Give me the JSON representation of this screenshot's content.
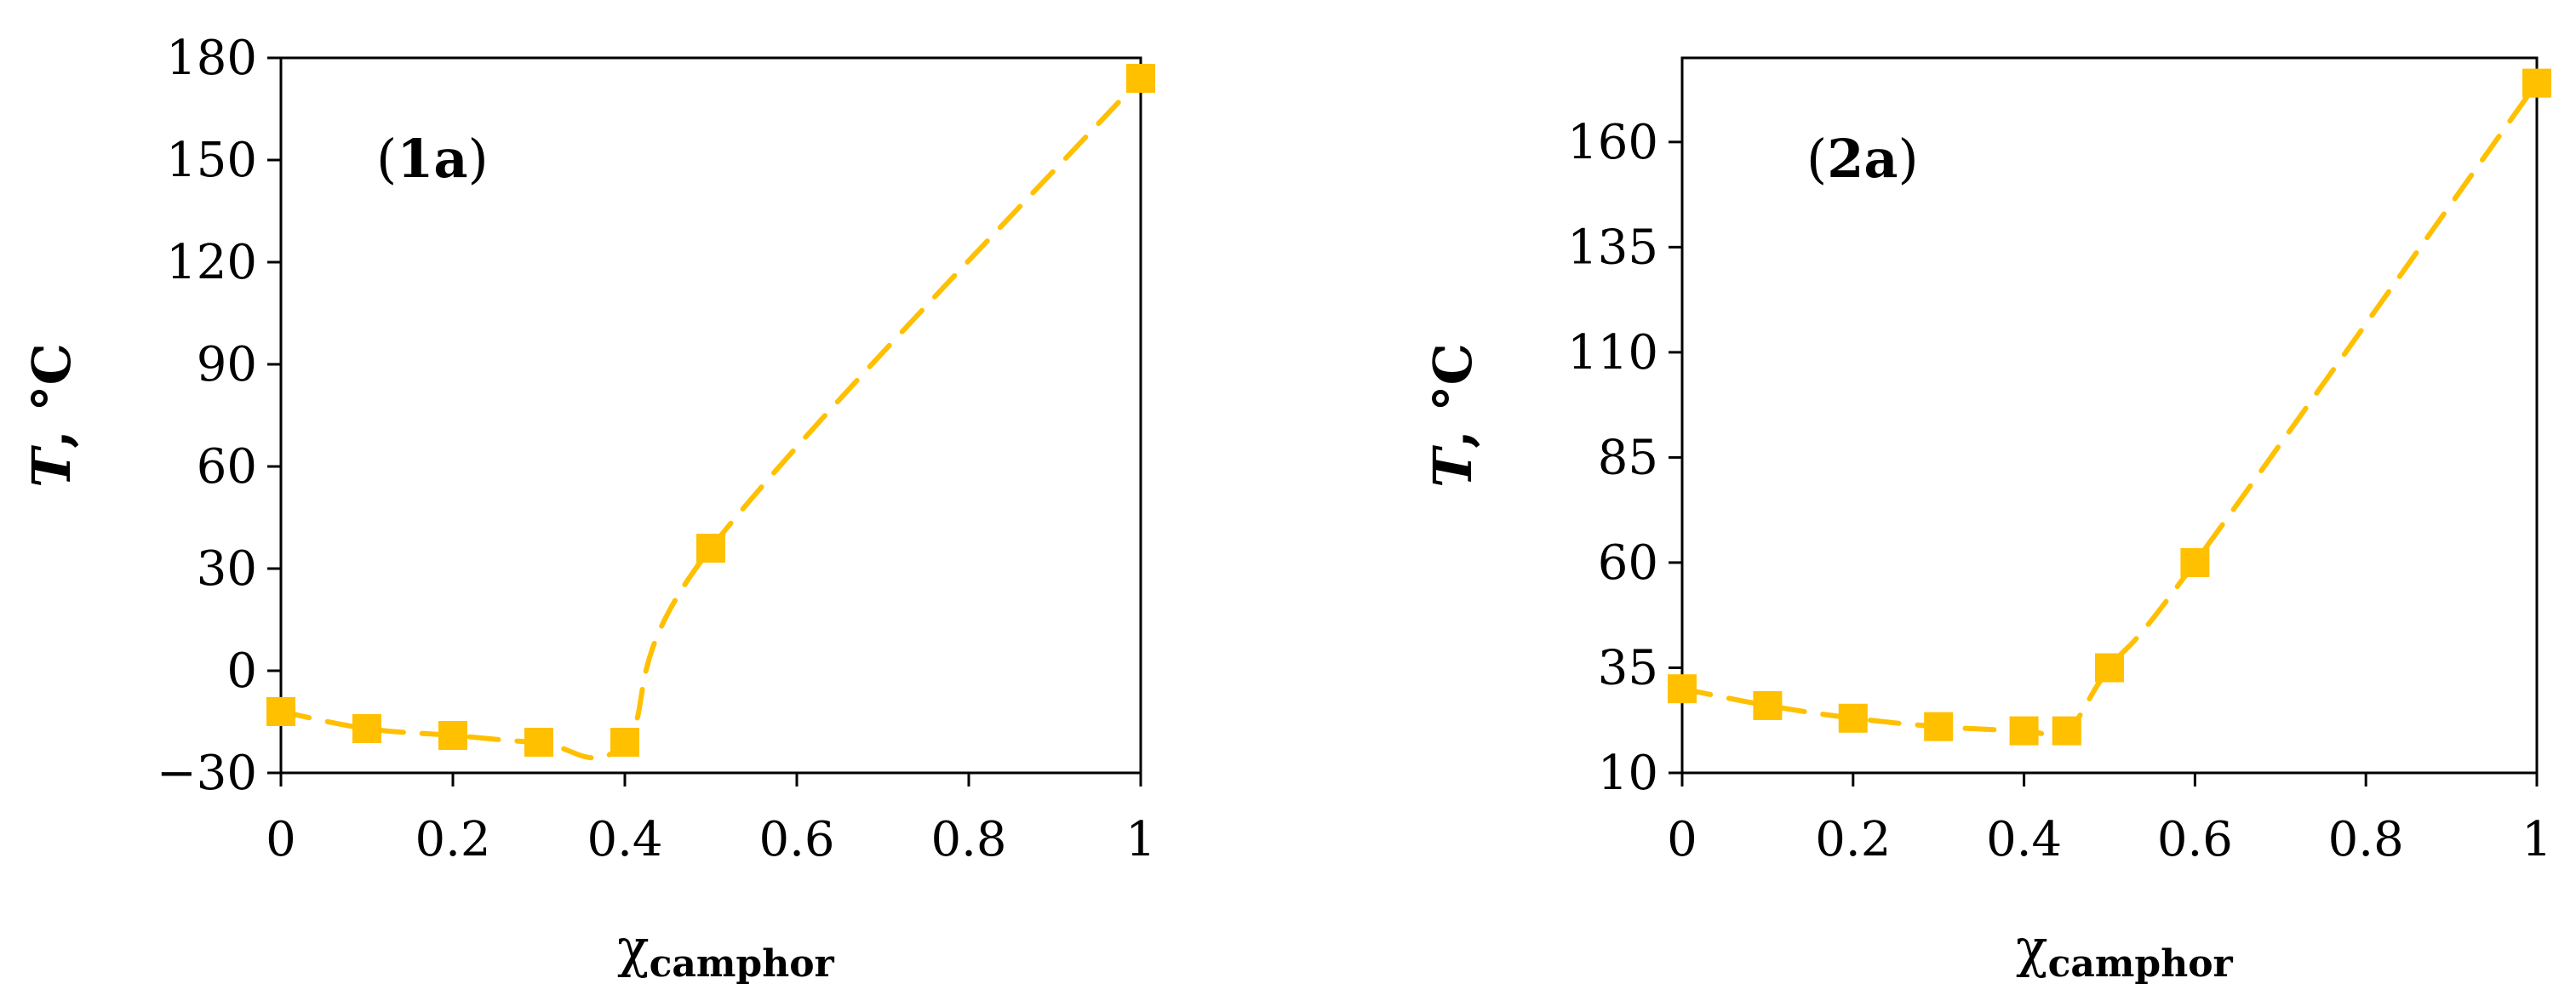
{
  "chart_data": [
    {
      "type": "line",
      "panel_label": {
        "open": "(",
        "bold": "1a",
        "close": ")"
      },
      "ylabel": {
        "italic": "T",
        "rest": ", °C"
      },
      "xlabel": {
        "main": "χ",
        "sub": "camphor"
      },
      "ylim": [
        -30,
        180
      ],
      "yticks": [
        "−30",
        "0",
        "30",
        "60",
        "90",
        "120",
        "150",
        "180"
      ],
      "ytick_values": [
        -30,
        0,
        30,
        60,
        90,
        120,
        150,
        180
      ],
      "xlim": [
        0,
        1
      ],
      "xticks": [
        "0",
        "0.2",
        "0.4",
        "0.6",
        "0.8",
        "1"
      ],
      "xtick_values": [
        0,
        0.2,
        0.4,
        0.6,
        0.8,
        1
      ],
      "grid": false,
      "marker_color": "#FFC000",
      "line_style": "dashed",
      "series": [
        {
          "x": [
            0,
            0.1,
            0.2,
            0.3,
            0.4,
            0.5,
            1
          ],
          "values": [
            -12,
            -17,
            -19,
            -21,
            -21,
            36,
            174
          ]
        }
      ]
    },
    {
      "type": "line",
      "panel_label": {
        "open": "(",
        "bold": "2a",
        "close": ")"
      },
      "ylabel": {
        "italic": "T",
        "rest": ", °C"
      },
      "xlabel": {
        "main": "χ",
        "sub": "camphor"
      },
      "ylim": [
        10,
        180
      ],
      "yticks": [
        "10",
        "35",
        "60",
        "85",
        "110",
        "135",
        "160"
      ],
      "ytick_values": [
        10,
        35,
        60,
        85,
        110,
        135,
        160
      ],
      "xlim": [
        0,
        1
      ],
      "xticks": [
        "0",
        "0.2",
        "0.4",
        "0.6",
        "0.8",
        "1"
      ],
      "xtick_values": [
        0,
        0.2,
        0.4,
        0.6,
        0.8,
        1
      ],
      "grid": false,
      "marker_color": "#FFC000",
      "line_style": "dashed",
      "series": [
        {
          "x": [
            0,
            0.1,
            0.2,
            0.3,
            0.4,
            0.45,
            0.5,
            0.6,
            1
          ],
          "values": [
            30,
            26,
            23,
            21,
            20,
            20,
            35,
            60,
            174
          ]
        }
      ]
    }
  ]
}
